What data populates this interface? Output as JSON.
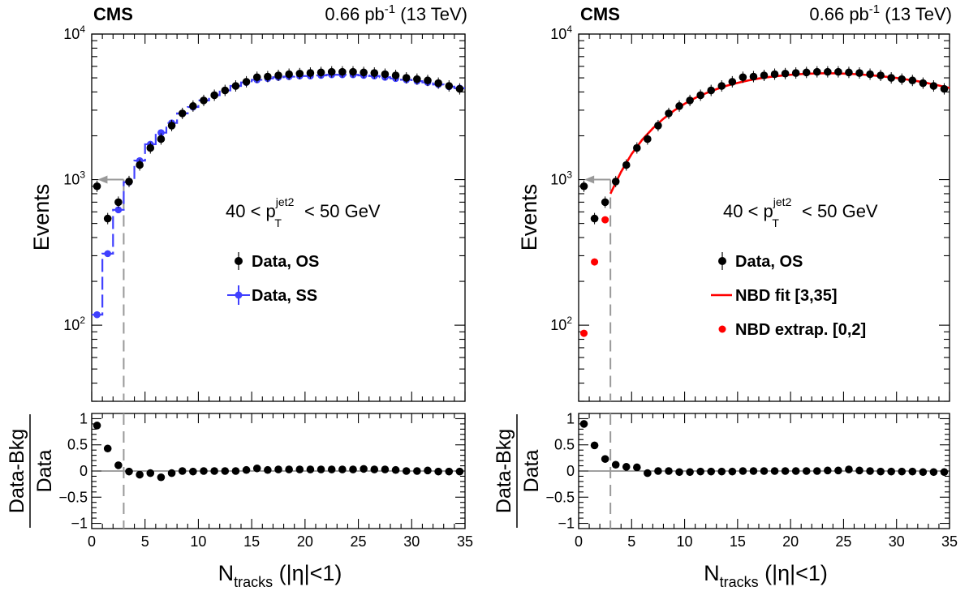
{
  "header": {
    "experiment": "CMS",
    "lumi": "0.66 pb",
    "lumi_exp": "-1",
    "energy": "(13 TeV)"
  },
  "labels": {
    "ylabel_main": "Events",
    "ratio_num": "Data-Bkg",
    "ratio_den": "Data",
    "xlabel_main": "N",
    "xlabel_sub": "tracks",
    "xlabel_tail": "(|η|<1)",
    "cut_prefix": "40 < p",
    "cut_sup": "jet2",
    "cut_sub": "T",
    "cut_suffix": "< 50 GeV"
  },
  "chart_data": [
    {
      "type": "scatter",
      "panel": "left",
      "x_range": [
        0,
        35
      ],
      "y_scale": "log",
      "y_range": [
        30,
        10000
      ],
      "y_tick_labels": [
        "10",
        "10",
        "10"
      ],
      "y_tick_exps": [
        "2",
        "3",
        "4"
      ],
      "ratio_range": [
        -1.1,
        1.1
      ],
      "ratio_tick_labels": [
        "1",
        "0.5",
        "0",
        "−0.5",
        "−1"
      ],
      "x_tick_labels": [
        "0",
        "5",
        "10",
        "15",
        "20",
        "25",
        "30",
        "35"
      ],
      "cut_line_x": 3,
      "cut_arrow_y": 1000,
      "legend": [
        {
          "label": "Data, OS",
          "color": "#000000"
        },
        {
          "label": "Data, SS",
          "color": "#4040ff"
        }
      ],
      "series": [
        {
          "name": "Data, OS",
          "color": "#000000",
          "x": [
            0.5,
            1.5,
            2.5,
            3.5,
            4.5,
            5.5,
            6.5,
            7.5,
            8.5,
            9.5,
            10.5,
            11.5,
            12.5,
            13.5,
            14.5,
            15.5,
            16.5,
            17.5,
            18.5,
            19.5,
            20.5,
            21.5,
            22.5,
            23.5,
            24.5,
            25.5,
            26.5,
            27.5,
            28.5,
            29.5,
            30.5,
            31.5,
            32.5,
            33.5,
            34.5
          ],
          "y": [
            900,
            540,
            700,
            970,
            1260,
            1650,
            1900,
            2350,
            2850,
            3200,
            3500,
            3800,
            4100,
            4400,
            4700,
            5050,
            5100,
            5200,
            5300,
            5350,
            5400,
            5450,
            5500,
            5500,
            5500,
            5450,
            5400,
            5300,
            5200,
            5000,
            4900,
            4800,
            4600,
            4400,
            4200
          ]
        },
        {
          "name": "Data, SS",
          "color": "#4040ff",
          "x": [
            0.5,
            1.5,
            2.5,
            3.5,
            4.5,
            5.5,
            6.5,
            7.5,
            8.5,
            9.5,
            10.5,
            11.5,
            12.5,
            13.5,
            14.5,
            15.5,
            16.5,
            17.5,
            18.5,
            19.5,
            20.5,
            21.5,
            22.5,
            23.5,
            24.5,
            25.5,
            26.5,
            27.5,
            28.5,
            29.5,
            30.5,
            31.5,
            32.5,
            33.5,
            34.5
          ],
          "y": [
            118,
            310,
            620,
            960,
            1350,
            1750,
            2100,
            2450,
            2850,
            3150,
            3500,
            3800,
            4100,
            4400,
            4650,
            4850,
            4950,
            5050,
            5100,
            5150,
            5150,
            5200,
            5250,
            5250,
            5250,
            5200,
            5150,
            5050,
            4950,
            4850,
            4750,
            4650,
            4500,
            4350,
            4250
          ]
        }
      ],
      "ratio": {
        "x": [
          0.5,
          1.5,
          2.5,
          3.5,
          4.5,
          5.5,
          6.5,
          7.5,
          8.5,
          9.5,
          10.5,
          11.5,
          12.5,
          13.5,
          14.5,
          15.5,
          16.5,
          17.5,
          18.5,
          19.5,
          20.5,
          21.5,
          22.5,
          23.5,
          24.5,
          25.5,
          26.5,
          27.5,
          28.5,
          29.5,
          30.5,
          31.5,
          32.5,
          33.5,
          34.5
        ],
        "y": [
          0.87,
          0.43,
          0.11,
          -0.01,
          -0.07,
          -0.04,
          -0.12,
          -0.04,
          0.0,
          -0.01,
          0.0,
          0.0,
          0.0,
          0.0,
          0.02,
          0.05,
          0.02,
          0.03,
          0.03,
          0.03,
          0.03,
          0.03,
          0.03,
          0.03,
          0.03,
          0.04,
          0.03,
          0.03,
          0.02,
          0.0,
          0.0,
          0.01,
          -0.01,
          -0.01,
          -0.01
        ]
      }
    },
    {
      "type": "scatter",
      "panel": "right",
      "x_range": [
        0,
        35
      ],
      "y_scale": "log",
      "y_range": [
        30,
        10000
      ],
      "y_tick_labels": [
        "10",
        "10",
        "10"
      ],
      "y_tick_exps": [
        "2",
        "3",
        "4"
      ],
      "ratio_range": [
        -1.1,
        1.1
      ],
      "ratio_tick_labels": [
        "1",
        "0.5",
        "0",
        "−0.5",
        "−1"
      ],
      "x_tick_labels": [
        "0",
        "5",
        "10",
        "15",
        "20",
        "25",
        "30",
        "35"
      ],
      "cut_line_x": 3,
      "cut_arrow_y": 1000,
      "legend": [
        {
          "label": "Data, OS",
          "color": "#000000"
        },
        {
          "label": "NBD fit [3,35]",
          "color": "#ff0000"
        },
        {
          "label": "NBD extrap. [0,2]",
          "color": "#ff0000"
        }
      ],
      "series": [
        {
          "name": "Data, OS",
          "color": "#000000",
          "x": [
            0.5,
            1.5,
            2.5,
            3.5,
            4.5,
            5.5,
            6.5,
            7.5,
            8.5,
            9.5,
            10.5,
            11.5,
            12.5,
            13.5,
            14.5,
            15.5,
            16.5,
            17.5,
            18.5,
            19.5,
            20.5,
            21.5,
            22.5,
            23.5,
            24.5,
            25.5,
            26.5,
            27.5,
            28.5,
            29.5,
            30.5,
            31.5,
            32.5,
            33.5,
            34.5
          ],
          "y": [
            900,
            540,
            700,
            970,
            1260,
            1650,
            1900,
            2350,
            2850,
            3200,
            3500,
            3800,
            4100,
            4400,
            4700,
            5050,
            5100,
            5200,
            5300,
            5350,
            5400,
            5450,
            5500,
            5500,
            5500,
            5450,
            5400,
            5300,
            5200,
            5000,
            4900,
            4800,
            4600,
            4400,
            4200
          ]
        },
        {
          "name": "NBD fit [3,35]",
          "color": "#ff0000",
          "x": [
            3,
            4,
            5,
            6,
            7,
            8,
            9,
            10,
            11,
            12,
            13,
            14,
            15,
            16,
            17,
            18,
            19,
            20,
            21,
            22,
            23,
            24,
            25,
            26,
            27,
            28,
            29,
            30,
            31,
            32,
            33,
            34,
            35
          ],
          "y": [
            800,
            1130,
            1500,
            1880,
            2250,
            2620,
            2980,
            3320,
            3640,
            3920,
            4180,
            4420,
            4620,
            4800,
            4950,
            5070,
            5170,
            5250,
            5310,
            5350,
            5370,
            5370,
            5350,
            5310,
            5250,
            5180,
            5090,
            4990,
            4870,
            4740,
            4590,
            4430,
            4260
          ]
        },
        {
          "name": "NBD extrap. [0,2]",
          "color": "#ff0000",
          "x": [
            0.5,
            1.5,
            2.5
          ],
          "y": [
            88,
            272,
            530
          ]
        }
      ],
      "ratio": {
        "x": [
          0.5,
          1.5,
          2.5,
          3.5,
          4.5,
          5.5,
          6.5,
          7.5,
          8.5,
          9.5,
          10.5,
          11.5,
          12.5,
          13.5,
          14.5,
          15.5,
          16.5,
          17.5,
          18.5,
          19.5,
          20.5,
          21.5,
          22.5,
          23.5,
          24.5,
          25.5,
          26.5,
          27.5,
          28.5,
          29.5,
          30.5,
          31.5,
          32.5,
          33.5,
          34.5
        ],
        "y": [
          0.9,
          0.49,
          0.23,
          0.12,
          0.08,
          0.07,
          -0.04,
          0.0,
          0.0,
          -0.02,
          -0.02,
          -0.01,
          -0.01,
          -0.01,
          -0.01,
          0.0,
          0.0,
          0.0,
          0.0,
          0.0,
          0.0,
          0.0,
          0.0,
          0.01,
          0.01,
          0.03,
          0.01,
          0.0,
          -0.01,
          -0.01,
          -0.01,
          -0.01,
          -0.02,
          -0.02,
          -0.02
        ]
      }
    }
  ]
}
